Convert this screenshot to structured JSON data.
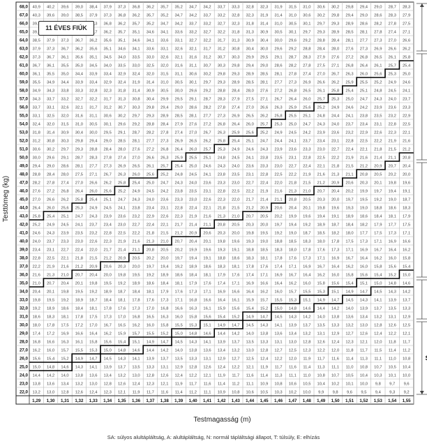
{
  "chart_data": {
    "type": "table",
    "title": "11 ÉVES FIÚK",
    "xlabel": "Testmagasság (m)",
    "ylabel": "Testtömeg (kg)",
    "x": [
      1.29,
      1.3,
      1.31,
      1.32,
      1.33,
      1.34,
      1.35,
      1.36,
      1.37,
      1.38,
      1.39,
      1.4,
      1.41,
      1.42,
      1.43,
      1.44,
      1.45,
      1.46,
      1.47,
      1.48,
      1.49,
      1.5,
      1.51,
      1.52,
      1.53,
      1.54,
      1.55
    ],
    "x_tick_labels": [
      "1,29",
      "1,30",
      "1,31",
      "1,32",
      "1,33",
      "1,34",
      "1,35",
      "1,36",
      "1,37",
      "1,38",
      "1,39",
      "1,40",
      "1,41",
      "1,42",
      "1,43",
      "1,44",
      "1,45",
      "1,46",
      "1,47",
      "1,48",
      "1,49",
      "1,50",
      "1,51",
      "1,52",
      "1,53",
      "1,54",
      "1,55"
    ],
    "y_top": 68.0,
    "y_bottom": 22.0,
    "y_step": 1.0,
    "cell_value": "BMI = testtömeg / testmagasság², 1 tizedesjegyre kerekítve, tizedesvesszővel",
    "categories": [
      {
        "code": "SA",
        "weight_range": [
          22,
          30
        ]
      },
      {
        "code": "A",
        "weight_range": [
          31,
          35
        ]
      },
      {
        "code": "N",
        "weight_range": [
          36,
          49
        ]
      },
      {
        "code": "T",
        "weight_range": [
          50,
          62
        ]
      },
      {
        "code": "E",
        "weight_range": [
          63,
          68
        ]
      }
    ],
    "thresholds": [
      {
        "label": "SA/A",
        "bmi": 14.6
      },
      {
        "label": "A/N",
        "bmi": 15.2
      },
      {
        "label": "N/T",
        "bmi": 20.9
      },
      {
        "label": "T/E",
        "bmi": 25.6
      }
    ],
    "footnote": "SA: súlyos alultápláltság, A: alultápláltság, N: normál tápláltsági állapot, T: túlsúly, E: elhízás"
  }
}
